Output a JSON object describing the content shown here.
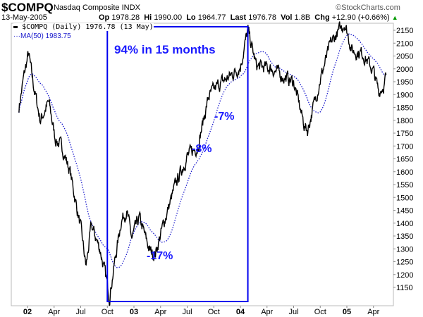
{
  "header": {
    "symbol": "$COMPQ",
    "name": "Nasdaq Composite",
    "exchange": "INDX",
    "brand": "©StockCharts.com",
    "date": "13-May-2005",
    "op_label": "Op",
    "op": "1978.28",
    "hi_label": "Hi",
    "hi": "1990.00",
    "lo_label": "Lo",
    "lo": "1964.77",
    "last_label": "Last",
    "last": "1976.78",
    "vol_label": "Vol",
    "vol": "1.8B",
    "chg_label": "Chg",
    "chg": "+12.90 (+0.66%)"
  },
  "legend": {
    "price": "$COMPQ (Daily) 1976.78 (13 May)",
    "ma": "MA(50) 1983.75"
  },
  "colors": {
    "price": "#000000",
    "ma": "#1a1acc",
    "box": "#0000ee",
    "annotation": "#1a1aff",
    "up": "#009900"
  },
  "chart_data": {
    "type": "line",
    "title": "$COMPQ Nasdaq Composite INDX",
    "ylim": [
      1100,
      2175
    ],
    "yticks": [
      1150,
      1200,
      1250,
      1300,
      1350,
      1400,
      1450,
      1500,
      1550,
      1600,
      1650,
      1700,
      1750,
      1800,
      1850,
      1900,
      1950,
      2000,
      2050,
      2100,
      2150
    ],
    "xticks": [
      {
        "t": 2002.0,
        "label": "02",
        "bold": true
      },
      {
        "t": 2002.25,
        "label": "Apr"
      },
      {
        "t": 2002.5,
        "label": "Jul"
      },
      {
        "t": 2002.75,
        "label": "Oct"
      },
      {
        "t": 2003.0,
        "label": "03",
        "bold": true
      },
      {
        "t": 2003.25,
        "label": "Apr"
      },
      {
        "t": 2003.5,
        "label": "Jul"
      },
      {
        "t": 2003.75,
        "label": "Oct"
      },
      {
        "t": 2004.0,
        "label": "04",
        "bold": true
      },
      {
        "t": 2004.25,
        "label": "Apr"
      },
      {
        "t": 2004.5,
        "label": "Jul"
      },
      {
        "t": 2004.75,
        "label": "Oct"
      },
      {
        "t": 2005.0,
        "label": "05",
        "bold": true
      },
      {
        "t": 2005.25,
        "label": "Apr"
      }
    ],
    "series": [
      {
        "name": "$COMPQ (Daily)",
        "keypoints": [
          [
            2001.92,
            1850
          ],
          [
            2001.97,
            1980
          ],
          [
            2002.01,
            2060
          ],
          [
            2002.05,
            1950
          ],
          [
            2002.12,
            1800
          ],
          [
            2002.2,
            1870
          ],
          [
            2002.26,
            1730
          ],
          [
            2002.33,
            1690
          ],
          [
            2002.4,
            1600
          ],
          [
            2002.5,
            1380
          ],
          [
            2002.55,
            1230
          ],
          [
            2002.6,
            1390
          ],
          [
            2002.68,
            1300
          ],
          [
            2002.74,
            1180
          ],
          [
            2002.77,
            1114
          ],
          [
            2002.88,
            1410
          ],
          [
            2002.93,
            1450
          ],
          [
            2002.98,
            1340
          ],
          [
            2003.05,
            1420
          ],
          [
            2003.15,
            1290
          ],
          [
            2003.2,
            1280
          ],
          [
            2003.28,
            1400
          ],
          [
            2003.4,
            1560
          ],
          [
            2003.5,
            1660
          ],
          [
            2003.6,
            1700
          ],
          [
            2003.7,
            1890
          ],
          [
            2003.8,
            1940
          ],
          [
            2003.9,
            1970
          ],
          [
            2004.0,
            2010
          ],
          [
            2004.07,
            2150
          ],
          [
            2004.15,
            2010
          ],
          [
            2004.3,
            2000
          ],
          [
            2004.4,
            1970
          ],
          [
            2004.5,
            1950
          ],
          [
            2004.6,
            1780
          ],
          [
            2004.63,
            1760
          ],
          [
            2004.75,
            1960
          ],
          [
            2004.85,
            2100
          ],
          [
            2004.98,
            2180
          ],
          [
            2005.05,
            2070
          ],
          [
            2005.15,
            2060
          ],
          [
            2005.25,
            1990
          ],
          [
            2005.3,
            1910
          ],
          [
            2005.35,
            1940
          ],
          [
            2005.37,
            1976.78
          ]
        ]
      },
      {
        "name": "MA(50)",
        "period": 50
      }
    ],
    "annotations": {
      "box_range": [
        2002.75,
        2004.07
      ],
      "box_label": "94% in 15 months",
      "pullbacks": [
        "-17%",
        "-8%",
        "-7%"
      ]
    }
  }
}
